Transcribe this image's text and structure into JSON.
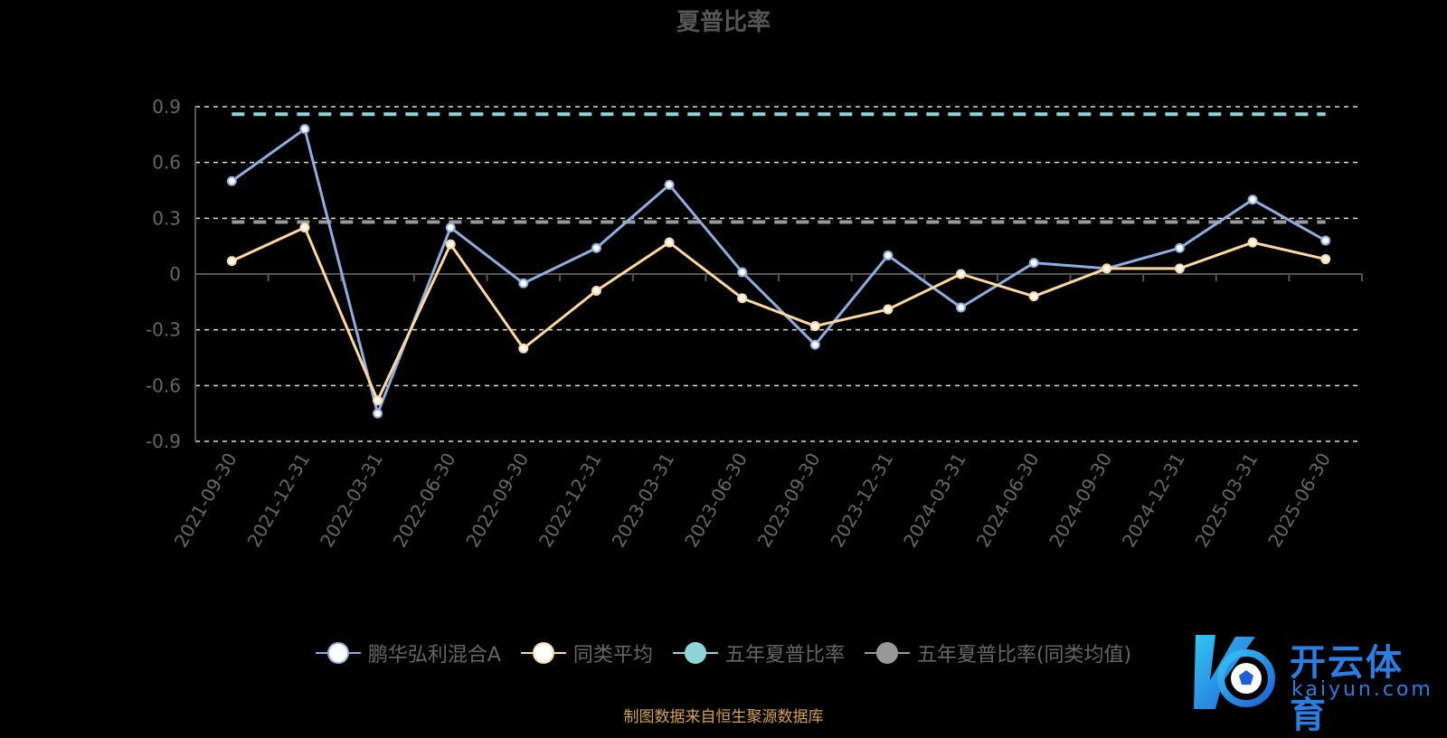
{
  "chart_data": {
    "type": "line",
    "title": "夏普比率",
    "categories": [
      "2021-09-30",
      "2021-12-31",
      "2022-03-31",
      "2022-06-30",
      "2022-09-30",
      "2022-12-31",
      "2023-03-31",
      "2023-06-30",
      "2023-09-30",
      "2023-12-31",
      "2024-03-31",
      "2024-06-30",
      "2024-09-30",
      "2024-12-31",
      "2025-03-31",
      "2025-06-30"
    ],
    "yticks": [
      "0.9",
      "0.6",
      "0.3",
      "0",
      "-0.3",
      "-0.6",
      "-0.9"
    ],
    "ylim": [
      -0.9,
      0.9
    ],
    "grid": true,
    "legend_position": "bottom",
    "series": [
      {
        "name": "鹏华弘利混合A",
        "color": "#8eaee0",
        "values": [
          0.5,
          0.78,
          -0.75,
          0.25,
          -0.05,
          0.14,
          0.48,
          0.01,
          -0.38,
          0.1,
          -0.18,
          0.06,
          0.03,
          0.14,
          0.4,
          0.18
        ]
      },
      {
        "name": "同类平均",
        "color": "#ffd8a0",
        "values": [
          0.07,
          0.25,
          -0.68,
          0.16,
          -0.4,
          -0.09,
          0.17,
          -0.13,
          -0.28,
          -0.19,
          0.0,
          -0.12,
          0.03,
          0.03,
          0.17,
          0.08
        ]
      },
      {
        "name": "五年夏普比率",
        "color": "#8fd4d8",
        "dashed": true,
        "value": 0.86
      },
      {
        "name": "五年夏普比率(同类均值)",
        "color": "#999999",
        "dashed": true,
        "value": 0.28
      }
    ]
  },
  "source": "制图数据来自恒生聚源数据库",
  "watermark": {
    "name": "开云体育",
    "url": "kaiyun.com"
  },
  "colors": {
    "background": "#000000",
    "axis": "#555555",
    "grid": "#dddddd",
    "text": "#666666"
  }
}
